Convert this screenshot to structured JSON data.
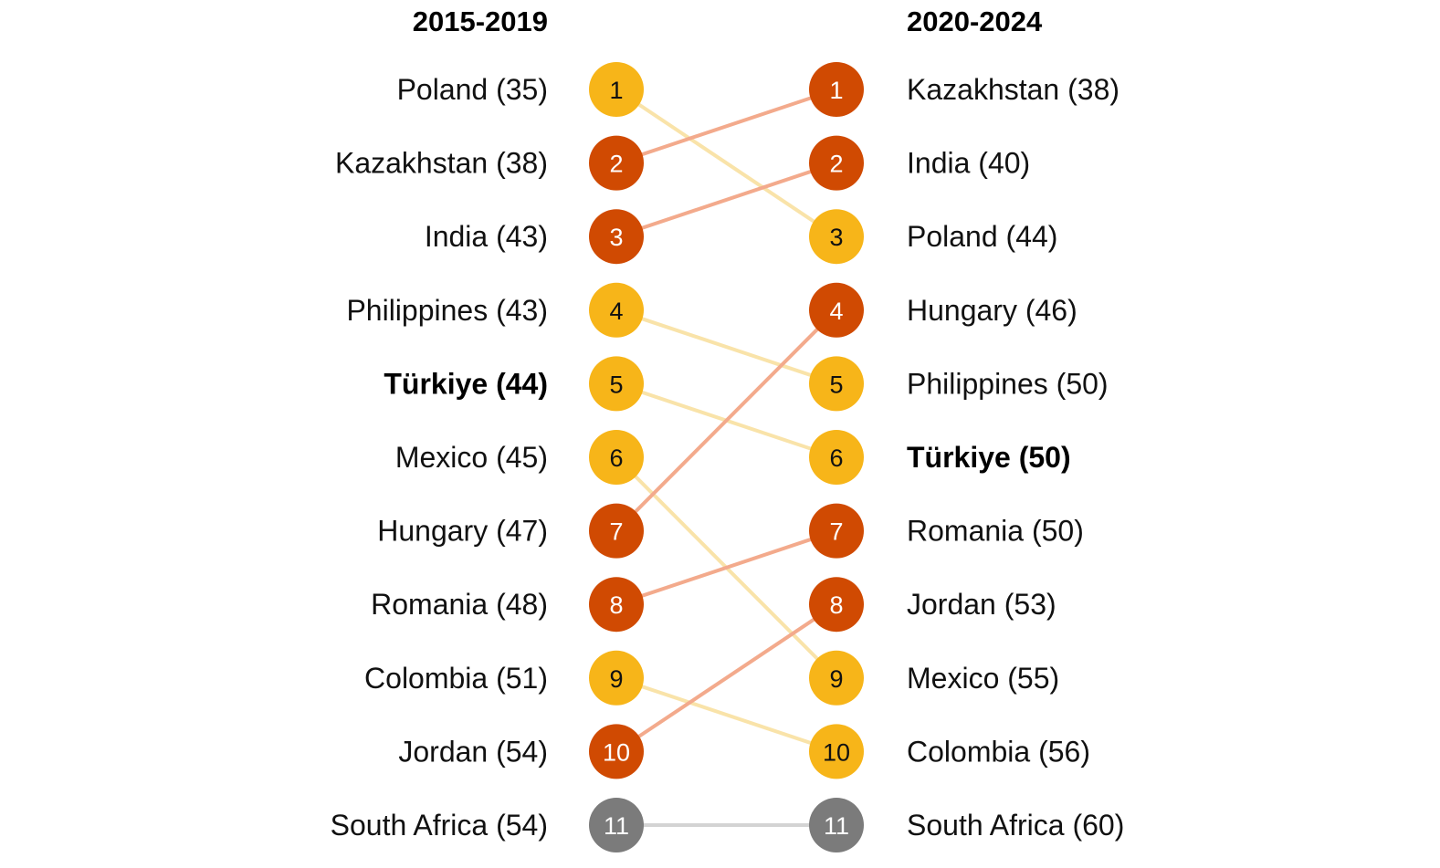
{
  "colors": {
    "improved": "#D04A02",
    "declined": "#F7B519",
    "unchanged": "#7B7B7B",
    "improved_line": "#F3AA8C",
    "declined_line": "#F9E3A9",
    "unchanged_line": "#D3D3D3"
  },
  "chart_data": {
    "type": "bump",
    "columns": [
      {
        "title": "2015-2019",
        "entries": [
          {
            "rank": "1",
            "label": "Poland (35)",
            "country": "Poland",
            "score": 35,
            "status": "declined"
          },
          {
            "rank": "2",
            "label": "Kazakhstan (38)",
            "country": "Kazakhstan",
            "score": 38,
            "status": "improved"
          },
          {
            "rank": "3",
            "label": "India (43)",
            "country": "India",
            "score": 43,
            "status": "improved"
          },
          {
            "rank": "4",
            "label": "Philippines (43)",
            "country": "Philippines",
            "score": 43,
            "status": "declined"
          },
          {
            "rank": "5",
            "label": "Türkiye (44)",
            "country": "Türkiye",
            "score": 44,
            "status": "declined",
            "highlight": true
          },
          {
            "rank": "6",
            "label": "Mexico (45)",
            "country": "Mexico",
            "score": 45,
            "status": "declined"
          },
          {
            "rank": "7",
            "label": "Hungary (47)",
            "country": "Hungary",
            "score": 47,
            "status": "improved"
          },
          {
            "rank": "8",
            "label": "Romania (48)",
            "country": "Romania",
            "score": 48,
            "status": "improved"
          },
          {
            "rank": "9",
            "label": "Colombia (51)",
            "country": "Colombia",
            "score": 51,
            "status": "declined"
          },
          {
            "rank": "10",
            "label": "Jordan (54)",
            "country": "Jordan",
            "score": 54,
            "status": "improved"
          },
          {
            "rank": "11",
            "label": "South Africa (54)",
            "country": "South Africa",
            "score": 54,
            "status": "unchanged"
          }
        ]
      },
      {
        "title": "2020-2024",
        "entries": [
          {
            "rank": "1",
            "label": "Kazakhstan (38)",
            "country": "Kazakhstan",
            "score": 38,
            "status": "improved"
          },
          {
            "rank": "2",
            "label": "India (40)",
            "country": "India",
            "score": 40,
            "status": "improved"
          },
          {
            "rank": "3",
            "label": "Poland (44)",
            "country": "Poland",
            "score": 44,
            "status": "declined"
          },
          {
            "rank": "4",
            "label": "Hungary (46)",
            "country": "Hungary",
            "score": 46,
            "status": "improved"
          },
          {
            "rank": "5",
            "label": "Philippines (50)",
            "country": "Philippines",
            "score": 50,
            "status": "declined"
          },
          {
            "rank": "6",
            "label": "Türkiye (50)",
            "country": "Türkiye",
            "score": 50,
            "status": "declined",
            "highlight": true
          },
          {
            "rank": "7",
            "label": "Romania (50)",
            "country": "Romania",
            "score": 50,
            "status": "improved"
          },
          {
            "rank": "8",
            "label": "Jordan (53)",
            "country": "Jordan",
            "score": 53,
            "status": "improved"
          },
          {
            "rank": "9",
            "label": "Mexico (55)",
            "country": "Mexico",
            "score": 55,
            "status": "declined"
          },
          {
            "rank": "10",
            "label": "Colombia (56)",
            "country": "Colombia",
            "score": 56,
            "status": "declined"
          },
          {
            "rank": "11",
            "label": "South Africa (60)",
            "country": "South Africa",
            "score": 60,
            "status": "unchanged"
          }
        ]
      }
    ]
  }
}
